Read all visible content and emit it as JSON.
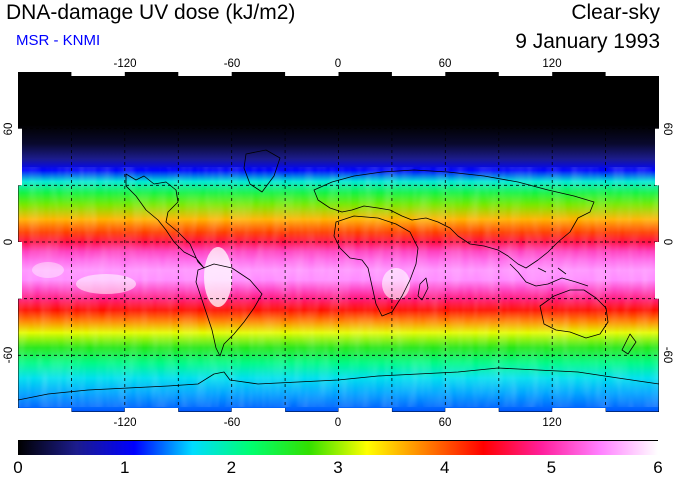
{
  "header": {
    "title": "DNA-damage UV dose (kJ/m2)",
    "subtitle": "MSR - KNMI",
    "subtitle_color": "#0000ff",
    "sky_condition": "Clear-sky",
    "date": "9 January 1993"
  },
  "map": {
    "projection": "equirectangular",
    "longitude_range": [
      -180,
      180
    ],
    "latitude_range": [
      -90,
      90
    ],
    "grid_step_degrees": 30,
    "longitude_ticks": [
      "-120",
      "-60",
      "0",
      "60",
      "120"
    ],
    "latitude_ticks": [
      "60",
      "0",
      "-60"
    ],
    "right_latitude_ticks": [
      "60",
      "0",
      "-60"
    ]
  },
  "colorbar": {
    "min": 0,
    "max": 6,
    "labels": [
      "0",
      "1",
      "2",
      "3",
      "4",
      "5",
      "6"
    ],
    "colors": [
      "#000000",
      "#1c1c8c",
      "#0000ff",
      "#00dcff",
      "#00ff70",
      "#32e000",
      "#ffff00",
      "#ff8000",
      "#ff0000",
      "#ff1f9c",
      "#ff80ff",
      "#ffffff"
    ]
  },
  "uv_profile": [
    {
      "lat": 90,
      "dose": 0.0
    },
    {
      "lat": 62,
      "dose": 0.0
    },
    {
      "lat": 52,
      "dose": 0.18
    },
    {
      "lat": 44,
      "dose": 0.55
    },
    {
      "lat": 38,
      "dose": 1.1
    },
    {
      "lat": 32,
      "dose": 1.8
    },
    {
      "lat": 26,
      "dose": 2.4
    },
    {
      "lat": 20,
      "dose": 2.9
    },
    {
      "lat": 12,
      "dose": 3.6
    },
    {
      "lat": 5,
      "dose": 4.1
    },
    {
      "lat": 0,
      "dose": 4.6
    },
    {
      "lat": -5,
      "dose": 5.1
    },
    {
      "lat": -10,
      "dose": 5.35
    },
    {
      "lat": -15,
      "dose": 5.55
    },
    {
      "lat": -20,
      "dose": 5.5
    },
    {
      "lat": -25,
      "dose": 5.15
    },
    {
      "lat": -30,
      "dose": 4.8
    },
    {
      "lat": -36,
      "dose": 4.3
    },
    {
      "lat": -42,
      "dose": 3.8
    },
    {
      "lat": -48,
      "dose": 3.2
    },
    {
      "lat": -56,
      "dose": 2.6
    },
    {
      "lat": -64,
      "dose": 2.1
    },
    {
      "lat": -72,
      "dose": 1.7
    },
    {
      "lat": -80,
      "dose": 1.5
    },
    {
      "lat": -90,
      "dose": 1.3
    }
  ]
}
